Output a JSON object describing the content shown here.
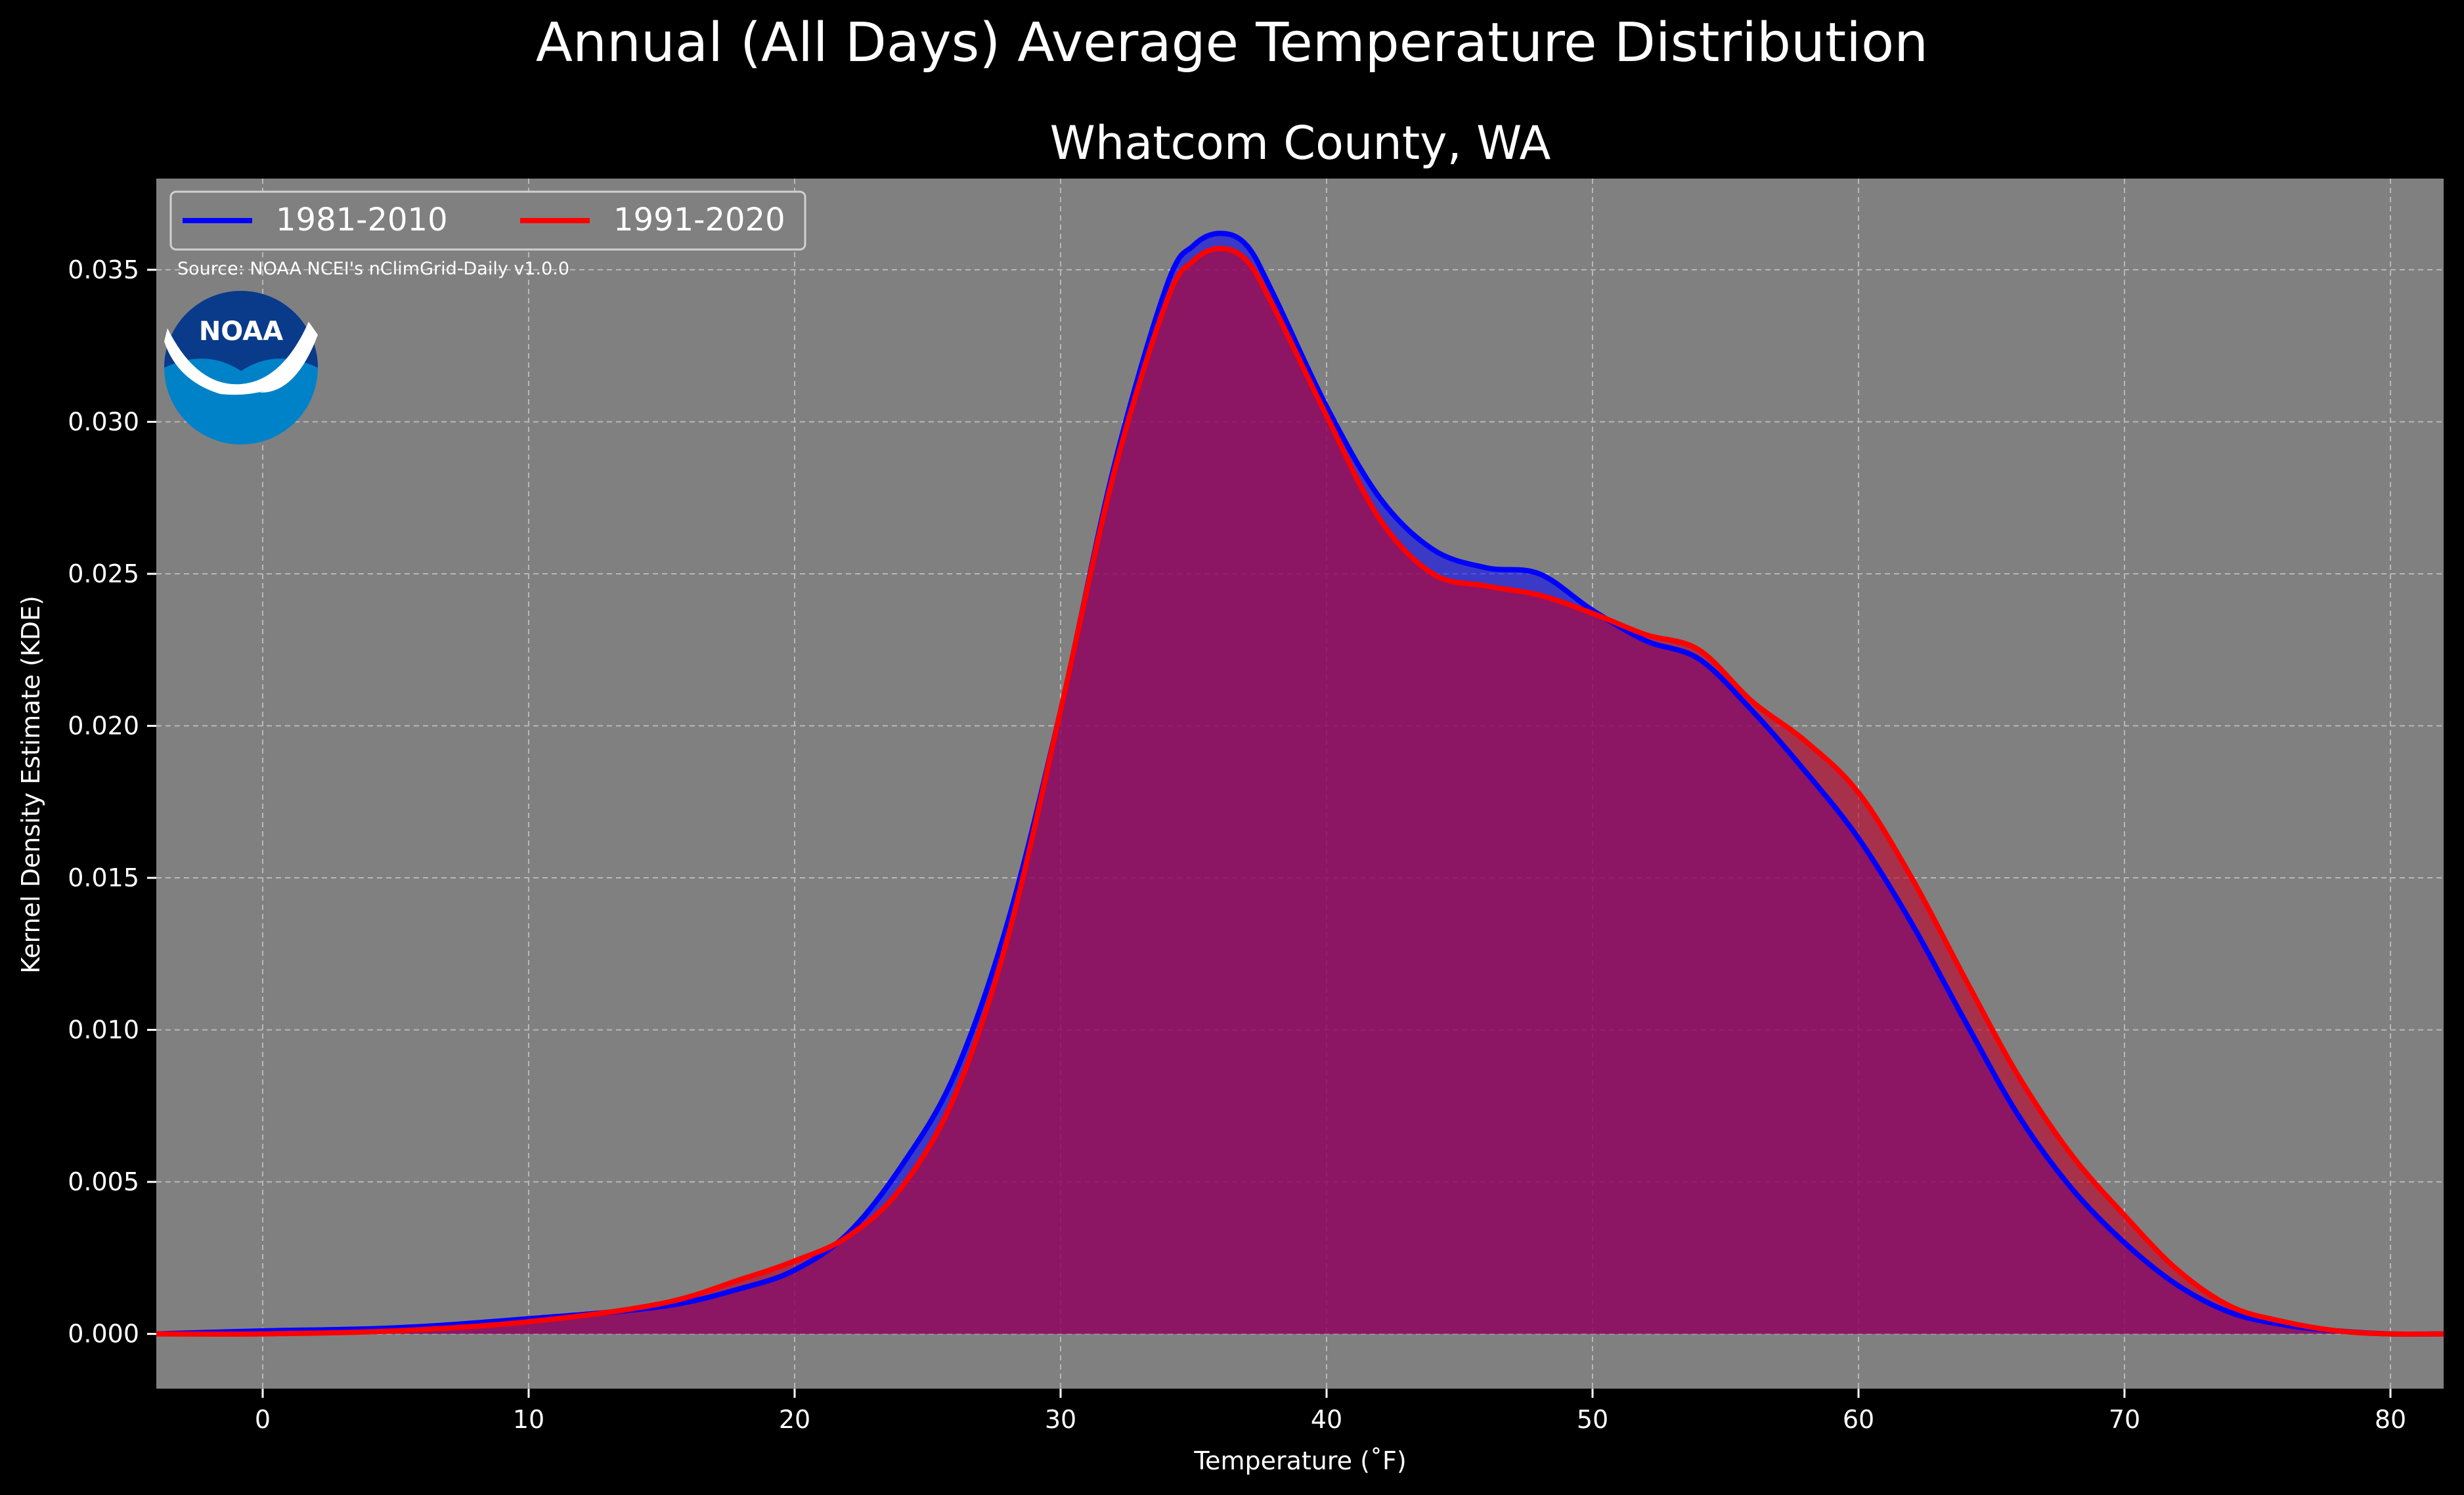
{
  "suptitle": "Annual (All Days) Average Temperature Distribution",
  "logo_text": "NOAA",
  "colors": {
    "background": "#000000",
    "axes_face": "#808080",
    "grid": "#b8b8b8",
    "series_1981_2010": "#0000ff",
    "series_1991_2020": "#ff0000",
    "overlap_fill": "#a01e5c"
  },
  "chart_data": {
    "type": "area",
    "title": "Whatcom County, WA",
    "xlabel": "Temperature ($^\\circ$F)",
    "xlabel_display": "Temperature (˚F)",
    "ylabel": "Kernel Density Estimate (KDE)",
    "annotation": "Source: NOAA NCEI's nClimGrid-Daily v1.0.0",
    "xlim": [
      -4,
      82
    ],
    "ylim": [
      -0.0018,
      0.038
    ],
    "xticks": [
      0,
      10,
      20,
      30,
      40,
      50,
      60,
      70,
      80
    ],
    "yticks": [
      0.0,
      0.005,
      0.01,
      0.015,
      0.02,
      0.025,
      0.03,
      0.035
    ],
    "ytick_labels": [
      "0.000",
      "0.005",
      "0.010",
      "0.015",
      "0.020",
      "0.025",
      "0.030",
      "0.035"
    ],
    "grid": true,
    "legend_position": "top-left",
    "series": [
      {
        "name": "1981-2010",
        "x": [
          -4,
          0,
          5,
          10,
          15,
          18,
          20,
          22,
          24,
          26,
          28,
          30,
          32,
          34,
          35,
          36,
          37,
          38,
          40,
          42,
          44,
          46,
          48,
          50,
          52,
          54,
          56,
          58,
          60,
          62,
          64,
          66,
          68,
          70,
          72,
          74,
          76,
          78,
          80,
          82
        ],
        "y": [
          0.0,
          0.0001,
          0.0002,
          0.0005,
          0.0009,
          0.0015,
          0.0021,
          0.0033,
          0.0055,
          0.0085,
          0.0135,
          0.0205,
          0.0285,
          0.0345,
          0.0358,
          0.0362,
          0.0358,
          0.0342,
          0.0305,
          0.0275,
          0.0258,
          0.0252,
          0.025,
          0.0238,
          0.0228,
          0.0222,
          0.0205,
          0.0185,
          0.0163,
          0.0135,
          0.0103,
          0.0072,
          0.0048,
          0.003,
          0.0016,
          0.0007,
          0.0003,
          0.0001,
          0.0,
          0.0
        ]
      },
      {
        "name": "1991-2020",
        "x": [
          -4,
          0,
          5,
          10,
          15,
          18,
          20,
          22,
          24,
          26,
          28,
          30,
          32,
          34,
          35,
          36,
          37,
          38,
          40,
          42,
          44,
          46,
          48,
          50,
          52,
          54,
          56,
          58,
          60,
          62,
          64,
          66,
          68,
          70,
          72,
          74,
          76,
          78,
          80,
          82
        ],
        "y": [
          0.0,
          0.0,
          0.0001,
          0.0004,
          0.001,
          0.0018,
          0.0024,
          0.0032,
          0.0048,
          0.0078,
          0.013,
          0.0205,
          0.0283,
          0.034,
          0.0353,
          0.0357,
          0.0353,
          0.0338,
          0.0302,
          0.0268,
          0.025,
          0.0246,
          0.0243,
          0.0237,
          0.023,
          0.0225,
          0.0208,
          0.0195,
          0.0178,
          0.015,
          0.0117,
          0.0085,
          0.0059,
          0.0039,
          0.0021,
          0.0009,
          0.0004,
          0.0001,
          0.0,
          0.0
        ]
      }
    ]
  }
}
